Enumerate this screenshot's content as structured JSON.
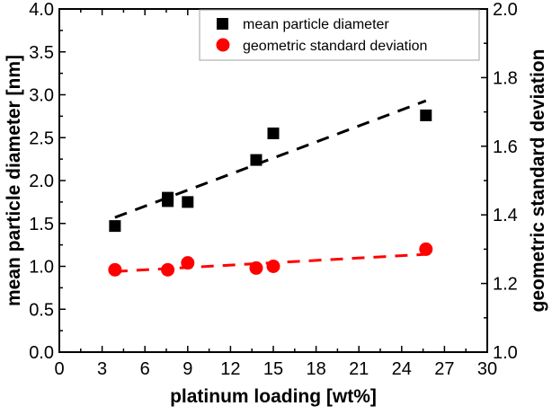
{
  "chart_data": {
    "type": "scatter",
    "title": "",
    "xlabel": "platinum loading [wt%]",
    "ylabel": "mean particle diameter [nm]",
    "y2label": "geometric standard deviation",
    "xlim": [
      0,
      30
    ],
    "ylim": [
      0,
      4.0
    ],
    "y2lim": [
      1.0,
      2.0
    ],
    "xticks": [
      "0",
      "3",
      "6",
      "9",
      "12",
      "15",
      "18",
      "21",
      "24",
      "27",
      "30"
    ],
    "xtick_values": [
      0,
      3,
      6,
      9,
      12,
      15,
      18,
      21,
      24,
      27,
      30
    ],
    "yticks": [
      "0.0",
      "0.5",
      "1.0",
      "1.5",
      "2.0",
      "2.5",
      "3.0",
      "3.5",
      "4.0"
    ],
    "ytick_values": [
      0,
      0.5,
      1.0,
      1.5,
      2.0,
      2.5,
      3.0,
      3.5,
      4.0
    ],
    "y2ticks": [
      "1.0",
      "1.2",
      "1.4",
      "1.6",
      "1.8",
      "2.0"
    ],
    "y2tick_values": [
      1.0,
      1.2,
      1.4,
      1.6,
      1.8,
      2.0
    ],
    "grid": false,
    "legend_position": "top-right",
    "series": [
      {
        "name": "mean particle diameter",
        "axis": "left",
        "marker": "square",
        "color": "#000000",
        "x": [
          3.9,
          7.6,
          7.6,
          9.0,
          13.8,
          15.0,
          25.7
        ],
        "y": [
          1.47,
          1.8,
          1.76,
          1.75,
          2.24,
          2.55,
          2.76
        ],
        "fit": {
          "style": "dashed",
          "x": [
            3.9,
            25.7
          ],
          "y": [
            1.57,
            2.93
          ]
        }
      },
      {
        "name": "geometric standard deviation",
        "axis": "right",
        "marker": "circle",
        "color": "#ff0000",
        "x": [
          3.9,
          7.6,
          9.0,
          13.8,
          15.0,
          25.7
        ],
        "y": [
          1.24,
          1.24,
          1.26,
          1.245,
          1.25,
          1.3
        ],
        "fit": {
          "style": "dashed",
          "x": [
            3.9,
            25.7
          ],
          "y": [
            1.235,
            1.285
          ]
        }
      }
    ]
  }
}
